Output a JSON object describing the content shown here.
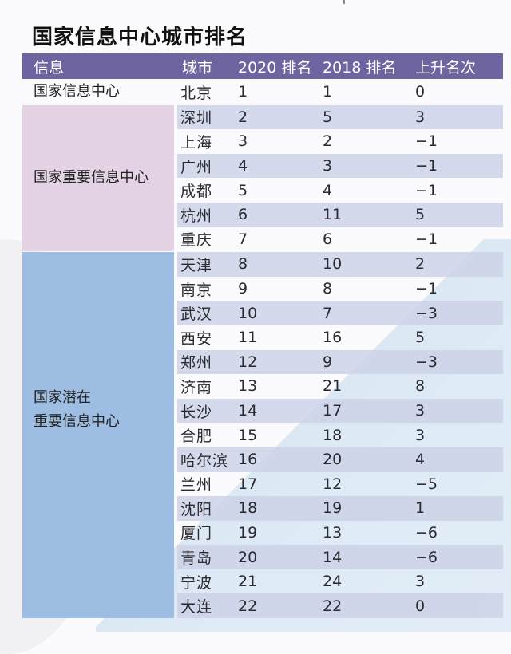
{
  "title": "国家信息中心城市排名",
  "colors": {
    "header_bg": "#6e65a0",
    "important_group_bg": "#e3d3e4",
    "potential_group_bg": "#9dbde2",
    "row_shade": "#cdd2e8"
  },
  "header": {
    "info": "信息",
    "city": "城市",
    "rank2020": "2020 排名",
    "rank2018": "2018 排名",
    "change": "上升名次"
  },
  "groups": [
    {
      "label": "国家信息中心",
      "rows": [
        {
          "city": "北京",
          "rank2020": "1",
          "rank2018": "1",
          "change": "0"
        }
      ]
    },
    {
      "label": "国家重要信息中心",
      "rows": [
        {
          "city": "深圳",
          "rank2020": "2",
          "rank2018": "5",
          "change": "3"
        },
        {
          "city": "上海",
          "rank2020": "3",
          "rank2018": "2",
          "change": "−1"
        },
        {
          "city": "广州",
          "rank2020": "4",
          "rank2018": "3",
          "change": "−1"
        },
        {
          "city": "成都",
          "rank2020": "5",
          "rank2018": "4",
          "change": "−1"
        },
        {
          "city": "杭州",
          "rank2020": "6",
          "rank2018": "11",
          "change": "5"
        },
        {
          "city": "重庆",
          "rank2020": "7",
          "rank2018": "6",
          "change": "−1"
        }
      ]
    },
    {
      "label": "国家潜在\n重要信息中心",
      "rows": [
        {
          "city": "天津",
          "rank2020": "8",
          "rank2018": "10",
          "change": "2"
        },
        {
          "city": "南京",
          "rank2020": "9",
          "rank2018": "8",
          "change": "−1"
        },
        {
          "city": "武汉",
          "rank2020": "10",
          "rank2018": "7",
          "change": "−3"
        },
        {
          "city": "西安",
          "rank2020": "11",
          "rank2018": "16",
          "change": "5"
        },
        {
          "city": "郑州",
          "rank2020": "12",
          "rank2018": "9",
          "change": "−3"
        },
        {
          "city": "济南",
          "rank2020": "13",
          "rank2018": "21",
          "change": "8"
        },
        {
          "city": "长沙",
          "rank2020": "14",
          "rank2018": "17",
          "change": "3"
        },
        {
          "city": "合肥",
          "rank2020": "15",
          "rank2018": "18",
          "change": "3"
        },
        {
          "city": "哈尔滨",
          "rank2020": "16",
          "rank2018": "20",
          "change": "4"
        },
        {
          "city": "兰州",
          "rank2020": "17",
          "rank2018": "12",
          "change": "−5"
        },
        {
          "city": "沈阳",
          "rank2020": "18",
          "rank2018": "19",
          "change": "1"
        },
        {
          "city": "厦门",
          "rank2020": "19",
          "rank2018": "13",
          "change": "−6"
        },
        {
          "city": "青岛",
          "rank2020": "20",
          "rank2018": "14",
          "change": "−6"
        },
        {
          "city": "宁波",
          "rank2020": "21",
          "rank2018": "24",
          "change": "3"
        },
        {
          "city": "大连",
          "rank2020": "22",
          "rank2018": "22",
          "change": "0"
        }
      ]
    }
  ]
}
